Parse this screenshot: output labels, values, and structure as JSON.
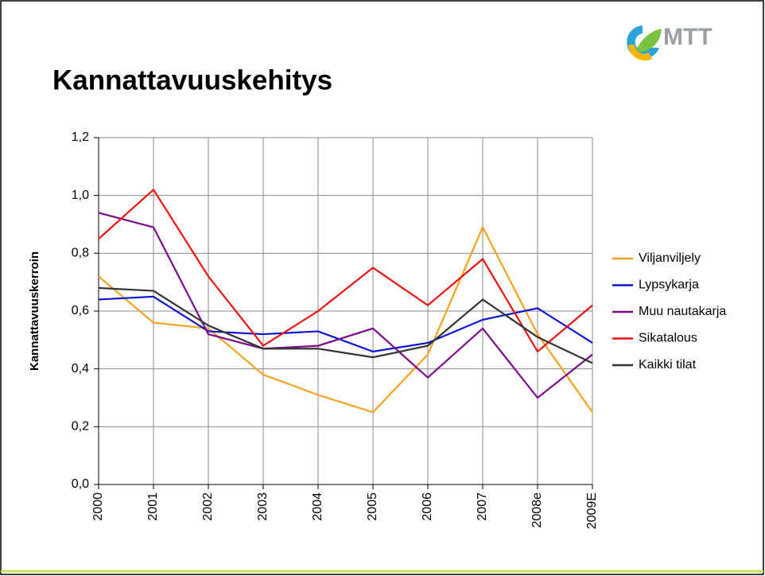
{
  "logo": "MTT",
  "chart_data": {
    "type": "line",
    "title": "Kannattavuuskehitys",
    "y_label": "Kannattavuuskerroin",
    "categories": [
      "2000",
      "2001",
      "2002",
      "2003",
      "2004",
      "2005",
      "2006",
      "2007",
      "2008e",
      "2009E"
    ],
    "series": [
      {
        "name": "Viljanviljely",
        "color": "#f5a21e",
        "values": [
          0.72,
          0.56,
          0.54,
          0.38,
          0.31,
          0.25,
          0.45,
          0.89,
          0.52,
          0.25
        ]
      },
      {
        "name": "Lypsykarja",
        "color": "#0a14d8",
        "values": [
          0.64,
          0.65,
          0.53,
          0.52,
          0.53,
          0.46,
          0.49,
          0.57,
          0.61,
          0.49
        ]
      },
      {
        "name": "Muu nautakarja",
        "color": "#7d0a8c",
        "values": [
          0.94,
          0.89,
          0.52,
          0.47,
          0.48,
          0.54,
          0.37,
          0.54,
          0.3,
          0.45
        ]
      },
      {
        "name": "Sikatalous",
        "color": "#ee1111",
        "values": [
          0.85,
          1.02,
          0.72,
          0.48,
          0.6,
          0.75,
          0.62,
          0.78,
          0.46,
          0.62
        ]
      },
      {
        "name": "Kaikki tilat",
        "color": "#333333",
        "values": [
          0.68,
          0.67,
          0.55,
          0.47,
          0.47,
          0.44,
          0.48,
          0.64,
          0.51,
          0.42
        ]
      }
    ],
    "ylim": [
      0,
      1.2
    ],
    "yticks": [
      {
        "value": 0,
        "label": "0,0"
      },
      {
        "value": 0.2,
        "label": "0,2"
      },
      {
        "value": 0.4,
        "label": "0,4"
      },
      {
        "value": 0.6,
        "label": "0,6"
      },
      {
        "value": 0.8,
        "label": "0,8"
      },
      {
        "value": 1.0,
        "label": "1,0"
      },
      {
        "value": 1.2,
        "label": "1,2"
      }
    ],
    "grid": true,
    "legend": "right"
  }
}
